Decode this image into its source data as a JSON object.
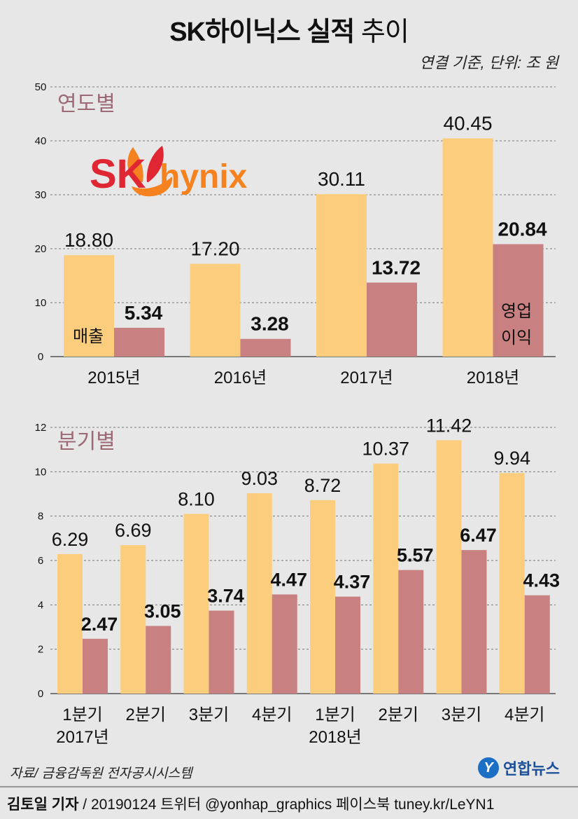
{
  "header": {
    "title_main": "SK하이닉스 실적",
    "title_light": "추이",
    "unit": "연결 기준, 단위: 조 원"
  },
  "colors": {
    "sales": "#fccd7d",
    "profit": "#c98080",
    "section_title": "#9c6a74",
    "brand_red": "#e02632",
    "brand_orange": "#f5821f",
    "grid": "#777777",
    "background": "#e7e7e7"
  },
  "logo": {
    "text_sk": "SK",
    "text_hynix": "hynix"
  },
  "chart_data": [
    {
      "type": "bar",
      "title": "연도별",
      "categories": [
        "2015년",
        "2016년",
        "2017년",
        "2018년"
      ],
      "series": [
        {
          "name": "매출",
          "values": [
            18.8,
            17.2,
            30.11,
            40.45
          ],
          "labels": [
            "18.80",
            "17.20",
            "30.11",
            "40.45"
          ]
        },
        {
          "name": "영업이익",
          "values": [
            5.34,
            3.28,
            13.72,
            20.84
          ],
          "labels": [
            "5.34",
            "3.28",
            "13.72",
            "20.84"
          ]
        }
      ],
      "series_label_sales": "매출",
      "series_label_profit_1": "영업",
      "series_label_profit_2": "이익",
      "yticks": [
        "0",
        "10",
        "20",
        "30",
        "40",
        "50"
      ],
      "ylim": [
        0,
        50
      ],
      "grid": true
    },
    {
      "type": "bar",
      "title": "분기별",
      "categories": [
        "1분기",
        "2분기",
        "3분기",
        "4분기",
        "1분기",
        "2분기",
        "3분기",
        "4분기"
      ],
      "year_labels": [
        "2017년",
        "2018년"
      ],
      "series": [
        {
          "name": "매출",
          "values": [
            6.29,
            6.69,
            8.1,
            9.03,
            8.72,
            10.37,
            11.42,
            9.94
          ],
          "labels": [
            "6.29",
            "6.69",
            "8.10",
            "9.03",
            "8.72",
            "10.37",
            "11.42",
            "9.94"
          ]
        },
        {
          "name": "영업이익",
          "values": [
            2.47,
            3.05,
            3.74,
            4.47,
            4.37,
            5.57,
            6.47,
            4.43
          ],
          "labels": [
            "2.47",
            "3.05",
            "3.74",
            "4.47",
            "4.37",
            "5.57",
            "6.47",
            "4.43"
          ]
        }
      ],
      "yticks": [
        "0",
        "2",
        "4",
        "6",
        "8",
        "10",
        "12"
      ],
      "ylim": [
        0,
        12
      ],
      "grid": true
    }
  ],
  "footer": {
    "source": "자료/ 금융감독원 전자공시시스템",
    "agency_name": "연합뉴스",
    "agency_mark": "Y",
    "reporter": "김토일 기자",
    "info": " / 20190124   트위터 @yonhap_graphics   페이스북 tuney.kr/LeYN1"
  }
}
